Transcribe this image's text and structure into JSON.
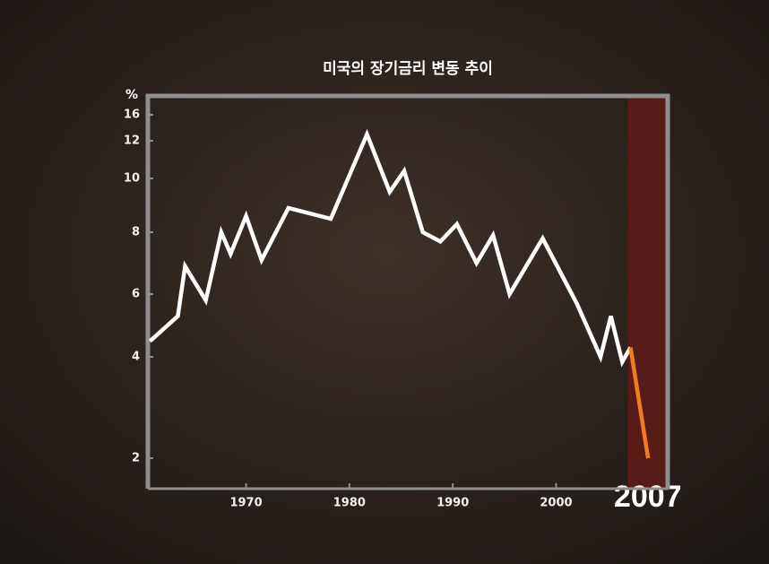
{
  "chart_data": {
    "type": "line",
    "title": "미국의 장기금리 변동 추이",
    "y_label": "%",
    "highlight_label": "2007",
    "xlim": [
      1960.5,
      2010.8
    ],
    "xticks": [
      1970,
      1980,
      1990,
      2000
    ],
    "ylim": [
      1.4,
      19
    ],
    "yticks": [
      2,
      4,
      6,
      8,
      10,
      12,
      16
    ],
    "series": [
      {
        "color": "#ffffff",
        "x": [
          1960.7,
          1963.4,
          1964.1,
          1966.1,
          1967.6,
          1968.5,
          1970,
          1971.5,
          1974.1,
          1978.2,
          1981.7,
          1983.9,
          1985.3,
          1987.1,
          1988.8,
          1990.4,
          1992.3,
          1993.9,
          1995.5,
          1998.7,
          2002,
          2004.3,
          2005.3,
          2006.4,
          2007.2
        ],
        "values": [
          4.5,
          5.3,
          6.9,
          5.8,
          8,
          7.3,
          8.6,
          7.1,
          8.9,
          8.5,
          13.0,
          9.5,
          10.4,
          8.0,
          7.7,
          8.3,
          7.0,
          7.9,
          6.0,
          7.8,
          5.7,
          4.0,
          5.3,
          3.9,
          4.3
        ]
      },
      {
        "color": "#f07d1e",
        "x": [
          2007.2,
          2008.9
        ],
        "values": [
          4.3,
          2.0
        ]
      }
    ]
  }
}
